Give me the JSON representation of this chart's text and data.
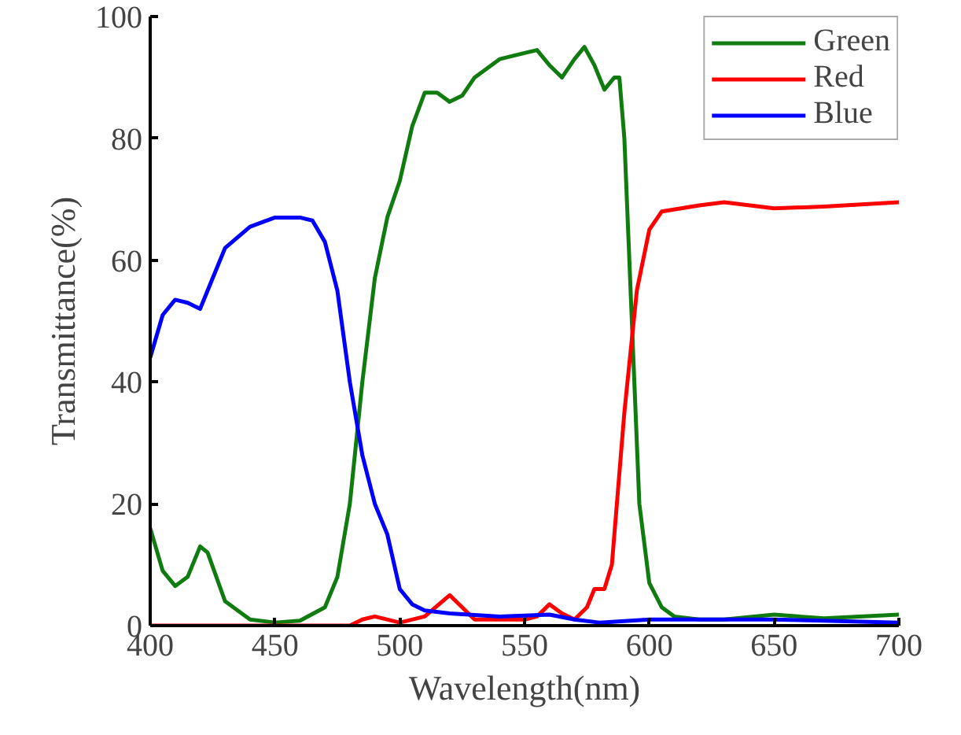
{
  "chart_data": {
    "type": "line",
    "xlabel": "Wavelength(nm)",
    "ylabel": "Transmittance(%)",
    "xlim": [
      400,
      700
    ],
    "ylim": [
      0,
      100
    ],
    "xticks": [
      400,
      450,
      500,
      550,
      600,
      650,
      700
    ],
    "yticks": [
      0,
      20,
      40,
      60,
      80,
      100
    ],
    "grid": false,
    "legend": "top right",
    "marker": "none",
    "line_style": "solid",
    "series": [
      {
        "name": "Green",
        "color": "#107c10",
        "x": [
          400,
          405,
          410,
          415,
          420,
          423,
          430,
          440,
          450,
          460,
          470,
          475,
          480,
          485,
          490,
          495,
          500,
          505,
          510,
          515,
          520,
          525,
          530,
          540,
          550,
          555,
          560,
          565,
          570,
          574,
          578,
          582,
          586,
          588,
          590,
          593,
          596,
          600,
          605,
          610,
          620,
          630,
          650,
          670,
          700
        ],
        "values": [
          16,
          9,
          6.5,
          8,
          13,
          12,
          4,
          1,
          0.5,
          0.8,
          3,
          8,
          20,
          40,
          57,
          67,
          73,
          82,
          87.5,
          87.5,
          86,
          87,
          90,
          93,
          94,
          94.5,
          92,
          90,
          93,
          95,
          92,
          88,
          90,
          90,
          80,
          50,
          20,
          7,
          3,
          1.5,
          1,
          1,
          1.8,
          1.2,
          1.8
        ]
      },
      {
        "name": "Red",
        "color": "#ff0000",
        "x": [
          400,
          480,
          485,
          490,
          500,
          510,
          520,
          525,
          530,
          550,
          555,
          560,
          565,
          570,
          575,
          578,
          582,
          585,
          590,
          595,
          600,
          605,
          620,
          630,
          650,
          670,
          700
        ],
        "values": [
          0,
          0,
          1,
          1.5,
          0.5,
          1.5,
          5,
          3,
          1,
          1,
          1.5,
          3.5,
          2,
          1,
          3,
          6,
          6,
          10,
          35,
          55,
          65,
          68,
          69,
          69.5,
          68.5,
          68.8,
          69.5
        ]
      },
      {
        "name": "Blue",
        "color": "#0000ff",
        "x": [
          400,
          405,
          410,
          415,
          420,
          425,
          430,
          440,
          450,
          460,
          465,
          470,
          475,
          480,
          485,
          490,
          495,
          500,
          505,
          510,
          520,
          540,
          560,
          570,
          580,
          600,
          620,
          650,
          670,
          700
        ],
        "values": [
          44,
          51,
          53.5,
          53,
          52,
          57,
          62,
          65.5,
          67,
          67,
          66.5,
          63,
          55,
          40,
          28,
          20,
          15,
          6,
          3.5,
          2.5,
          2,
          1.5,
          1.8,
          1,
          0.5,
          1,
          1,
          1,
          0.8,
          0.5
        ]
      }
    ]
  }
}
